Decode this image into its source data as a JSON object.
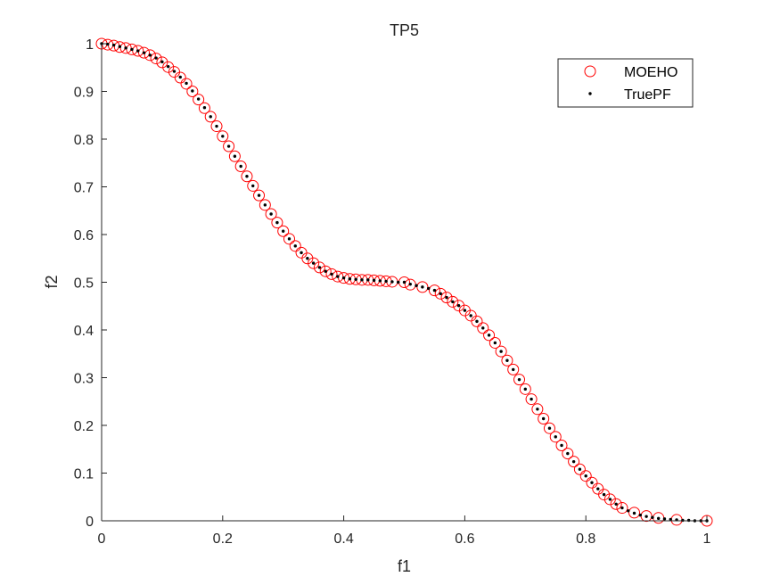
{
  "chart_data": {
    "type": "scatter",
    "title": "TP5",
    "xlabel": "f1",
    "ylabel": "f2",
    "xlim": [
      0,
      1
    ],
    "ylim": [
      0,
      1
    ],
    "xticks": [
      0,
      0.2,
      0.4,
      0.6,
      0.8,
      1
    ],
    "xtick_labels": [
      "0",
      "0.2",
      "0.4",
      "0.6",
      "0.8",
      "1"
    ],
    "yticks": [
      0,
      0.1,
      0.2,
      0.3,
      0.4,
      0.5,
      0.6,
      0.7,
      0.8,
      0.9,
      1
    ],
    "ytick_labels": [
      "0",
      "0.1",
      "0.2",
      "0.3",
      "0.4",
      "0.5",
      "0.6",
      "0.7",
      "0.8",
      "0.9",
      "1"
    ],
    "grid": false,
    "legend_position": "top-right",
    "series": [
      {
        "name": "MOEHO",
        "marker": "open-circle",
        "color": "#ff0000",
        "points": [
          [
            0.0,
            1.0
          ],
          [
            0.01,
            0.998
          ],
          [
            0.02,
            0.996
          ],
          [
            0.03,
            0.993
          ],
          [
            0.04,
            0.991
          ],
          [
            0.05,
            0.988
          ],
          [
            0.06,
            0.985
          ],
          [
            0.07,
            0.981
          ],
          [
            0.08,
            0.976
          ],
          [
            0.09,
            0.969
          ],
          [
            0.1,
            0.961
          ],
          [
            0.11,
            0.951
          ],
          [
            0.12,
            0.941
          ],
          [
            0.13,
            0.929
          ],
          [
            0.14,
            0.916
          ],
          [
            0.15,
            0.9
          ],
          [
            0.16,
            0.883
          ],
          [
            0.17,
            0.865
          ],
          [
            0.18,
            0.847
          ],
          [
            0.19,
            0.827
          ],
          [
            0.2,
            0.806
          ],
          [
            0.21,
            0.785
          ],
          [
            0.22,
            0.764
          ],
          [
            0.23,
            0.743
          ],
          [
            0.24,
            0.722
          ],
          [
            0.25,
            0.702
          ],
          [
            0.26,
            0.682
          ],
          [
            0.27,
            0.662
          ],
          [
            0.28,
            0.643
          ],
          [
            0.29,
            0.625
          ],
          [
            0.3,
            0.607
          ],
          [
            0.31,
            0.591
          ],
          [
            0.32,
            0.576
          ],
          [
            0.33,
            0.562
          ],
          [
            0.34,
            0.55
          ],
          [
            0.35,
            0.54
          ],
          [
            0.36,
            0.531
          ],
          [
            0.37,
            0.523
          ],
          [
            0.38,
            0.517
          ],
          [
            0.39,
            0.512
          ],
          [
            0.4,
            0.509
          ],
          [
            0.41,
            0.507
          ],
          [
            0.42,
            0.506
          ],
          [
            0.43,
            0.505
          ],
          [
            0.44,
            0.505
          ],
          [
            0.45,
            0.504
          ],
          [
            0.46,
            0.503
          ],
          [
            0.47,
            0.502
          ],
          [
            0.48,
            0.501
          ],
          [
            0.5,
            0.5
          ],
          [
            0.51,
            0.495
          ],
          [
            0.53,
            0.49
          ],
          [
            0.55,
            0.483
          ],
          [
            0.56,
            0.476
          ],
          [
            0.57,
            0.468
          ],
          [
            0.58,
            0.459
          ],
          [
            0.59,
            0.451
          ],
          [
            0.6,
            0.441
          ],
          [
            0.61,
            0.43
          ],
          [
            0.62,
            0.418
          ],
          [
            0.63,
            0.404
          ],
          [
            0.64,
            0.389
          ],
          [
            0.65,
            0.373
          ],
          [
            0.66,
            0.355
          ],
          [
            0.67,
            0.336
          ],
          [
            0.68,
            0.317
          ],
          [
            0.69,
            0.296
          ],
          [
            0.7,
            0.276
          ],
          [
            0.71,
            0.255
          ],
          [
            0.72,
            0.234
          ],
          [
            0.73,
            0.214
          ],
          [
            0.74,
            0.194
          ],
          [
            0.75,
            0.176
          ],
          [
            0.76,
            0.158
          ],
          [
            0.77,
            0.141
          ],
          [
            0.78,
            0.124
          ],
          [
            0.79,
            0.108
          ],
          [
            0.8,
            0.094
          ],
          [
            0.81,
            0.08
          ],
          [
            0.82,
            0.067
          ],
          [
            0.83,
            0.055
          ],
          [
            0.84,
            0.045
          ],
          [
            0.85,
            0.035
          ],
          [
            0.86,
            0.027
          ],
          [
            0.88,
            0.017
          ],
          [
            0.9,
            0.01
          ],
          [
            0.92,
            0.006
          ],
          [
            0.95,
            0.002
          ],
          [
            1.0,
            0.0
          ]
        ]
      },
      {
        "name": "TruePF",
        "marker": "dot",
        "color": "#000000",
        "points": [
          [
            0.0,
            1.0
          ],
          [
            0.01,
            0.999
          ],
          [
            0.02,
            0.997
          ],
          [
            0.03,
            0.994
          ],
          [
            0.04,
            0.991
          ],
          [
            0.05,
            0.988
          ],
          [
            0.06,
            0.985
          ],
          [
            0.07,
            0.981
          ],
          [
            0.08,
            0.976
          ],
          [
            0.09,
            0.97
          ],
          [
            0.1,
            0.962
          ],
          [
            0.11,
            0.952
          ],
          [
            0.12,
            0.942
          ],
          [
            0.13,
            0.93
          ],
          [
            0.14,
            0.917
          ],
          [
            0.15,
            0.901
          ],
          [
            0.16,
            0.884
          ],
          [
            0.17,
            0.866
          ],
          [
            0.18,
            0.847
          ],
          [
            0.19,
            0.827
          ],
          [
            0.2,
            0.806
          ],
          [
            0.21,
            0.785
          ],
          [
            0.22,
            0.764
          ],
          [
            0.23,
            0.743
          ],
          [
            0.24,
            0.722
          ],
          [
            0.25,
            0.702
          ],
          [
            0.26,
            0.682
          ],
          [
            0.27,
            0.662
          ],
          [
            0.28,
            0.643
          ],
          [
            0.29,
            0.625
          ],
          [
            0.3,
            0.607
          ],
          [
            0.31,
            0.591
          ],
          [
            0.32,
            0.576
          ],
          [
            0.33,
            0.562
          ],
          [
            0.34,
            0.55
          ],
          [
            0.35,
            0.54
          ],
          [
            0.36,
            0.531
          ],
          [
            0.37,
            0.523
          ],
          [
            0.38,
            0.517
          ],
          [
            0.39,
            0.512
          ],
          [
            0.4,
            0.509
          ],
          [
            0.41,
            0.507
          ],
          [
            0.42,
            0.506
          ],
          [
            0.43,
            0.505
          ],
          [
            0.44,
            0.505
          ],
          [
            0.45,
            0.504
          ],
          [
            0.46,
            0.503
          ],
          [
            0.47,
            0.502
          ],
          [
            0.48,
            0.501
          ],
          [
            0.49,
            0.5
          ],
          [
            0.5,
            0.5
          ],
          [
            0.51,
            0.496
          ],
          [
            0.52,
            0.493
          ],
          [
            0.53,
            0.49
          ],
          [
            0.54,
            0.487
          ],
          [
            0.55,
            0.483
          ],
          [
            0.56,
            0.476
          ],
          [
            0.57,
            0.468
          ],
          [
            0.58,
            0.459
          ],
          [
            0.59,
            0.451
          ],
          [
            0.6,
            0.441
          ],
          [
            0.61,
            0.43
          ],
          [
            0.62,
            0.418
          ],
          [
            0.63,
            0.404
          ],
          [
            0.64,
            0.389
          ],
          [
            0.65,
            0.373
          ],
          [
            0.66,
            0.355
          ],
          [
            0.67,
            0.336
          ],
          [
            0.68,
            0.317
          ],
          [
            0.69,
            0.296
          ],
          [
            0.7,
            0.276
          ],
          [
            0.71,
            0.255
          ],
          [
            0.72,
            0.234
          ],
          [
            0.73,
            0.214
          ],
          [
            0.74,
            0.194
          ],
          [
            0.75,
            0.176
          ],
          [
            0.76,
            0.158
          ],
          [
            0.77,
            0.141
          ],
          [
            0.78,
            0.124
          ],
          [
            0.79,
            0.108
          ],
          [
            0.8,
            0.094
          ],
          [
            0.81,
            0.08
          ],
          [
            0.82,
            0.067
          ],
          [
            0.83,
            0.055
          ],
          [
            0.84,
            0.045
          ],
          [
            0.85,
            0.035
          ],
          [
            0.86,
            0.027
          ],
          [
            0.87,
            0.021
          ],
          [
            0.88,
            0.016
          ],
          [
            0.89,
            0.012
          ],
          [
            0.9,
            0.009
          ],
          [
            0.91,
            0.007
          ],
          [
            0.92,
            0.005
          ],
          [
            0.93,
            0.004
          ],
          [
            0.94,
            0.003
          ],
          [
            0.95,
            0.002
          ],
          [
            0.96,
            0.001
          ],
          [
            0.97,
            0.001
          ],
          [
            0.98,
            0.0
          ],
          [
            0.99,
            0.0
          ],
          [
            1.0,
            0.0
          ]
        ]
      }
    ]
  }
}
